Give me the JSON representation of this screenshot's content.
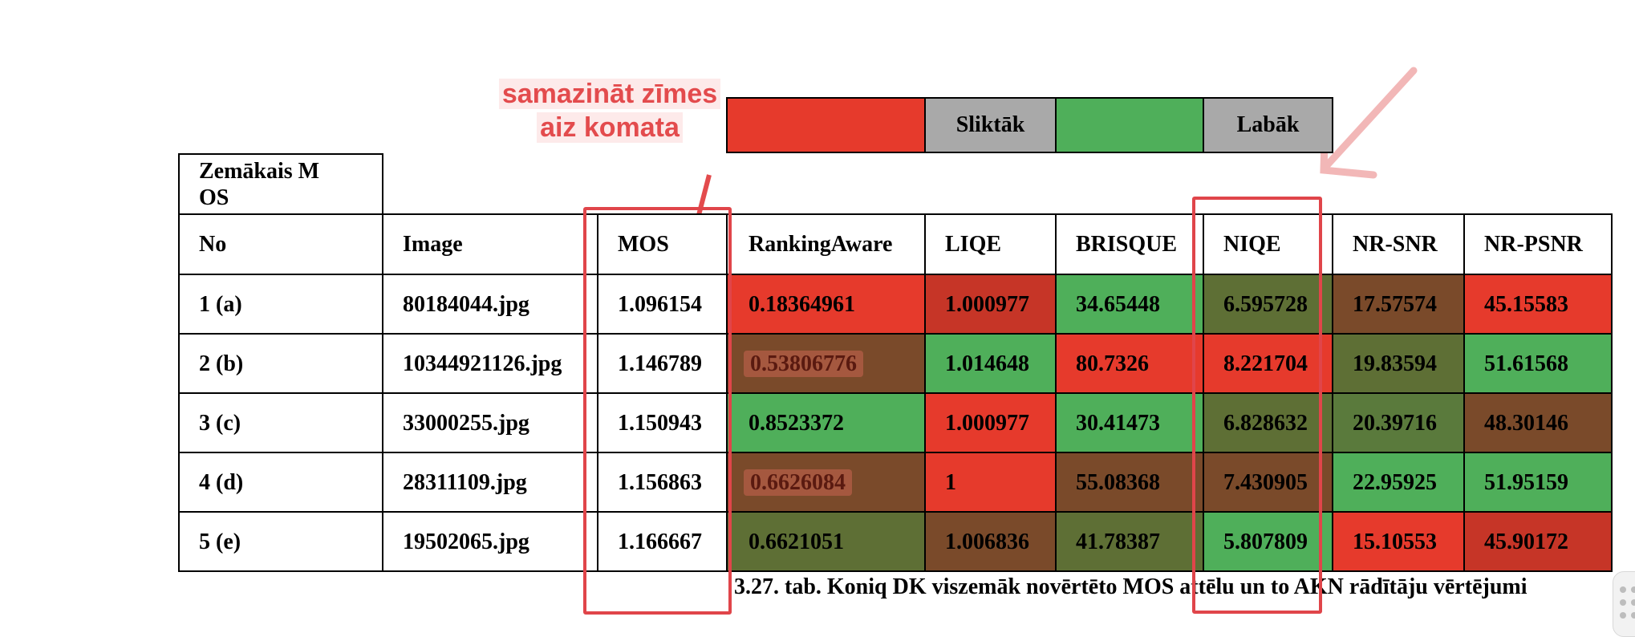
{
  "annotation": {
    "note_line1": "samazināt zīmes",
    "note_line2": "aiz komata"
  },
  "legend": {
    "worse_label": "Sliktāk",
    "better_label": "Labāk",
    "worse_color": "#e63a2c",
    "neutral_color": "#a9a9a9",
    "better_color": "#4faf5a"
  },
  "table": {
    "group_header": "Zemākais MOS",
    "headers": [
      "No",
      "Image",
      "MOS",
      "RankingAware",
      "LIQE",
      "BRISQUE",
      "NIQE",
      "NR-SNR",
      "NR-PSNR"
    ],
    "rows": [
      [
        "1 (a)",
        "80184044.jpg",
        "1.096154",
        "0.18364961",
        "1.000977",
        "34.65448",
        "6.595728",
        "17.57574",
        "45.15583"
      ],
      [
        "2 (b)",
        "10344921126.jpg",
        "1.146789",
        "0.53806776",
        "1.014648",
        "80.7326",
        "8.221704",
        "19.83594",
        "51.61568"
      ],
      [
        "3 (c)",
        "33000255.jpg",
        "1.150943",
        "0.8523372",
        "1.000977",
        "30.41473",
        "6.828632",
        "20.39716",
        "48.30146"
      ],
      [
        "4 (d)",
        "28311109.jpg",
        "1.156863",
        "0.6626084",
        "1",
        "55.08368",
        "7.430905",
        "22.95925",
        "51.95159"
      ],
      [
        "5 (e)",
        "19502065.jpg",
        "1.166667",
        "0.6621051",
        "1.006836",
        "41.78387",
        "5.807809",
        "15.10553",
        "45.90172"
      ]
    ]
  },
  "caption": "3.27. tab. Koniq DK viszemāk novērtēto MOS attēlu un to AKN rādītāju vērtējumi"
}
